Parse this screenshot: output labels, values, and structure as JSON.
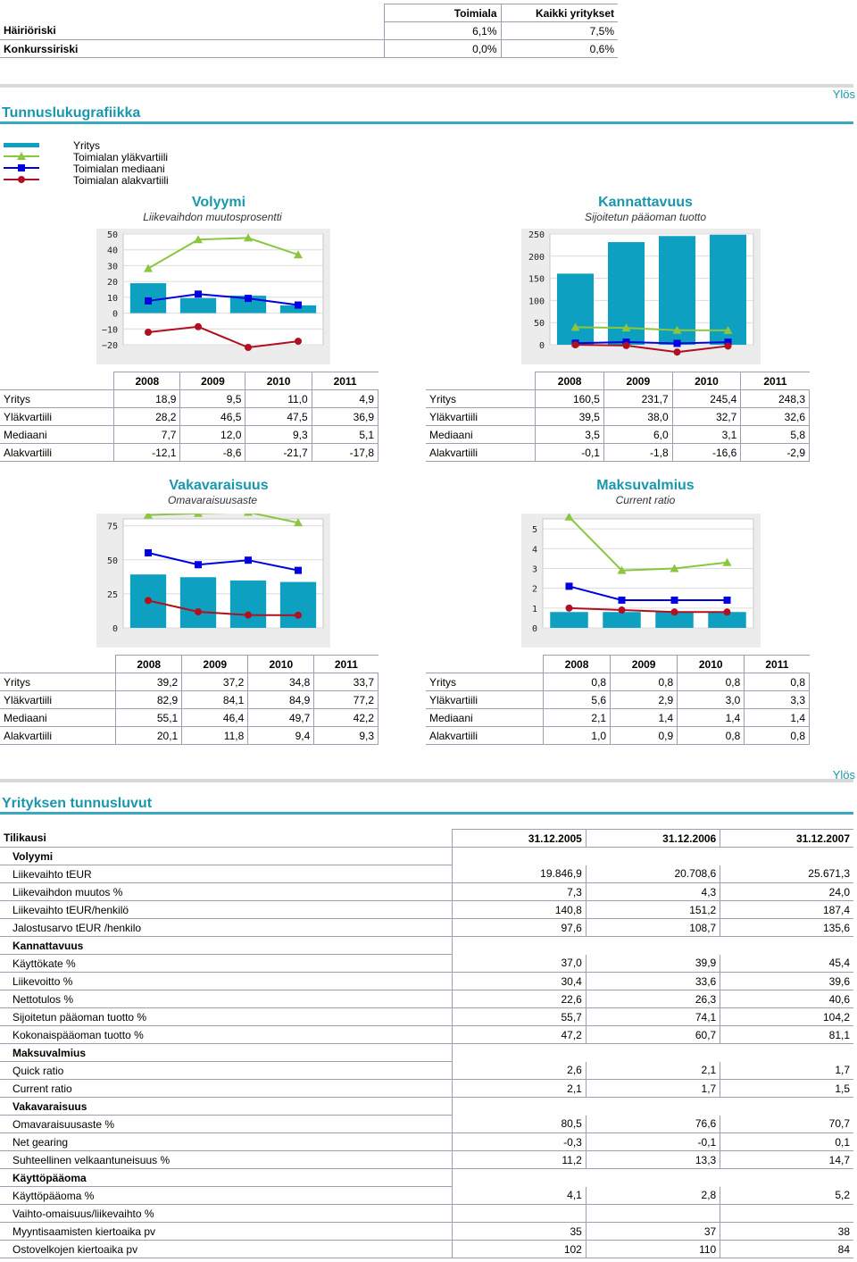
{
  "top_table": {
    "headers": [
      "Toimiala",
      "Kaikki yritykset"
    ],
    "rows": [
      {
        "label": "Häiriöriski",
        "v1": "6,1%",
        "v2": "7,5%"
      },
      {
        "label": "Konkurssiriski",
        "v1": "0,0%",
        "v2": "0,6%"
      }
    ]
  },
  "graphics_section": {
    "title": "Tunnuslukugrafiikka",
    "ylos": "Ylös"
  },
  "legend": {
    "items": [
      "Yritys",
      "Toimialan yläkvartiili",
      "Toimialan mediaani",
      "Toimialan alakvartiili"
    ],
    "colors": {
      "company": "#0ea0c0",
      "upper": "#8cc63f",
      "median": "#0000e0",
      "lower": "#b01020"
    }
  },
  "years": [
    "2008",
    "2009",
    "2010",
    "2011"
  ],
  "row_labels": [
    "Yritys",
    "Yläkvartiili",
    "Mediaani",
    "Alakvartiili"
  ],
  "chart_data": [
    {
      "type": "bar",
      "title": "Volyymi",
      "subtitle": "Liikevaihdon muutosprosentti",
      "categories": [
        "2008",
        "2009",
        "2010",
        "2011"
      ],
      "ylim": [
        -20,
        50
      ],
      "yticks": [
        50,
        40,
        30,
        20,
        10,
        0,
        -10,
        -20
      ],
      "ytick_labels": [
        "50",
        "40",
        "30",
        "20",
        "10",
        "0",
        "−10",
        "−20"
      ],
      "series": [
        {
          "name": "Yritys",
          "values": [
            18.9,
            9.5,
            11.0,
            4.9
          ]
        },
        {
          "name": "Yläkvartiili",
          "values": [
            28.2,
            46.5,
            47.5,
            36.9
          ]
        },
        {
          "name": "Mediaani",
          "values": [
            7.7,
            12.0,
            9.3,
            5.1
          ]
        },
        {
          "name": "Alakvartiili",
          "values": [
            -12.1,
            -8.6,
            -21.7,
            -17.8
          ]
        }
      ],
      "table": [
        [
          "18,9",
          "9,5",
          "11,0",
          "4,9"
        ],
        [
          "28,2",
          "46,5",
          "47,5",
          "36,9"
        ],
        [
          "7,7",
          "12,0",
          "9,3",
          "5,1"
        ],
        [
          "-12,1",
          "-8,6",
          "-21,7",
          "-17,8"
        ]
      ]
    },
    {
      "type": "bar",
      "title": "Kannattavuus",
      "subtitle": "Sijoitetun pääoman tuotto",
      "categories": [
        "2008",
        "2009",
        "2010",
        "2011"
      ],
      "ylim": [
        0,
        250
      ],
      "yticks": [
        250,
        200,
        150,
        100,
        50,
        0
      ],
      "ytick_labels": [
        "250",
        "200",
        "150",
        "100",
        "50",
        "0"
      ],
      "series": [
        {
          "name": "Yritys",
          "values": [
            160.5,
            231.7,
            245.4,
            248.3
          ]
        },
        {
          "name": "Yläkvartiili",
          "values": [
            39.5,
            38.0,
            32.7,
            32.6
          ]
        },
        {
          "name": "Mediaani",
          "values": [
            3.5,
            6.0,
            3.1,
            5.8
          ]
        },
        {
          "name": "Alakvartiili",
          "values": [
            -0.1,
            -1.8,
            -16.6,
            -2.9
          ]
        }
      ],
      "table": [
        [
          "160,5",
          "231,7",
          "245,4",
          "248,3"
        ],
        [
          "39,5",
          "38,0",
          "32,7",
          "32,6"
        ],
        [
          "3,5",
          "6,0",
          "3,1",
          "5,8"
        ],
        [
          "-0,1",
          "-1,8",
          "-16,6",
          "-2,9"
        ]
      ]
    },
    {
      "type": "bar",
      "title": "Vakavaraisuus",
      "subtitle": "Omavaraisuusaste",
      "categories": [
        "2008",
        "2009",
        "2010",
        "2011"
      ],
      "ylim": [
        0,
        80
      ],
      "yticks": [
        75,
        50,
        25,
        0
      ],
      "ytick_labels": [
        "75",
        "50",
        "25",
        "0"
      ],
      "series": [
        {
          "name": "Yritys",
          "values": [
            39.2,
            37.2,
            34.8,
            33.7
          ]
        },
        {
          "name": "Yläkvartiili",
          "values": [
            82.9,
            84.1,
            84.9,
            77.2
          ]
        },
        {
          "name": "Mediaani",
          "values": [
            55.1,
            46.4,
            49.7,
            42.2
          ]
        },
        {
          "name": "Alakvartiili",
          "values": [
            20.1,
            11.8,
            9.4,
            9.3
          ]
        }
      ],
      "table": [
        [
          "39,2",
          "37,2",
          "34,8",
          "33,7"
        ],
        [
          "82,9",
          "84,1",
          "84,9",
          "77,2"
        ],
        [
          "55,1",
          "46,4",
          "49,7",
          "42,2"
        ],
        [
          "20,1",
          "11,8",
          "9,4",
          "9,3"
        ]
      ]
    },
    {
      "type": "bar",
      "title": "Maksuvalmius",
      "subtitle": "Current ratio",
      "categories": [
        "2008",
        "2009",
        "2010",
        "2011"
      ],
      "ylim": [
        0,
        5.5
      ],
      "yticks": [
        5,
        4,
        3,
        2,
        1,
        0
      ],
      "ytick_labels": [
        "5",
        "4",
        "3",
        "2",
        "1",
        "0"
      ],
      "series": [
        {
          "name": "Yritys",
          "values": [
            0.8,
            0.8,
            0.8,
            0.8
          ]
        },
        {
          "name": "Yläkvartiili",
          "values": [
            5.6,
            2.9,
            3.0,
            3.3
          ]
        },
        {
          "name": "Mediaani",
          "values": [
            2.1,
            1.4,
            1.4,
            1.4
          ]
        },
        {
          "name": "Alakvartiili",
          "values": [
            1.0,
            0.9,
            0.8,
            0.8
          ]
        }
      ],
      "table": [
        [
          "0,8",
          "0,8",
          "0,8",
          "0,8"
        ],
        [
          "5,6",
          "2,9",
          "3,0",
          "3,3"
        ],
        [
          "2,1",
          "1,4",
          "1,4",
          "1,4"
        ],
        [
          "1,0",
          "0,9",
          "0,8",
          "0,8"
        ]
      ]
    }
  ],
  "company_section": {
    "title": "Yrityksen tunnusluvut",
    "ylos": "Ylös",
    "header": {
      "label": "Tilikausi",
      "cols": [
        "31.12.2005",
        "31.12.2006",
        "31.12.2007"
      ]
    },
    "rows": [
      {
        "label": "Volyymi",
        "group": true
      },
      {
        "label": "Liikevaihto tEUR",
        "v": [
          "19.846,9",
          "20.708,6",
          "25.671,3"
        ]
      },
      {
        "label": "Liikevaihdon muutos %",
        "v": [
          "7,3",
          "4,3",
          "24,0"
        ]
      },
      {
        "label": "Liikevaihto tEUR/henkilö",
        "v": [
          "140,8",
          "151,2",
          "187,4"
        ]
      },
      {
        "label": "Jalostusarvo tEUR /henkilo",
        "v": [
          "97,6",
          "108,7",
          "135,6"
        ]
      },
      {
        "label": "Kannattavuus",
        "group": true
      },
      {
        "label": "Käyttökate %",
        "v": [
          "37,0",
          "39,9",
          "45,4"
        ]
      },
      {
        "label": "Liikevoitto %",
        "v": [
          "30,4",
          "33,6",
          "39,6"
        ]
      },
      {
        "label": "Nettotulos %",
        "v": [
          "22,6",
          "26,3",
          "40,6"
        ]
      },
      {
        "label": "Sijoitetun pääoman tuotto %",
        "v": [
          "55,7",
          "74,1",
          "104,2"
        ]
      },
      {
        "label": "Kokonaispääoman tuotto %",
        "v": [
          "47,2",
          "60,7",
          "81,1"
        ]
      },
      {
        "label": "Maksuvalmius",
        "group": true
      },
      {
        "label": "Quick ratio",
        "v": [
          "2,6",
          "2,1",
          "1,7"
        ]
      },
      {
        "label": "Current ratio",
        "v": [
          "2,1",
          "1,7",
          "1,5"
        ]
      },
      {
        "label": "Vakavaraisuus",
        "group": true
      },
      {
        "label": "Omavaraisuusaste %",
        "v": [
          "80,5",
          "76,6",
          "70,7"
        ]
      },
      {
        "label": "Net gearing",
        "v": [
          "-0,3",
          "-0,1",
          "0,1"
        ]
      },
      {
        "label": "Suhteellinen velkaantuneisuus %",
        "v": [
          "11,2",
          "13,3",
          "14,7"
        ]
      },
      {
        "label": "Käyttöpääoma",
        "group": true
      },
      {
        "label": "Käyttöpääoma %",
        "v": [
          "4,1",
          "2,8",
          "5,2"
        ]
      },
      {
        "label": "Vaihto-omaisuus/liikevaihto %",
        "v": [
          "",
          "",
          ""
        ]
      },
      {
        "label": "Myyntisaamisten kiertoaika pv",
        "v": [
          "35",
          "37",
          "38"
        ]
      },
      {
        "label": "Ostovelkojen kiertoaika pv",
        "v": [
          "102",
          "110",
          "84"
        ]
      }
    ]
  }
}
